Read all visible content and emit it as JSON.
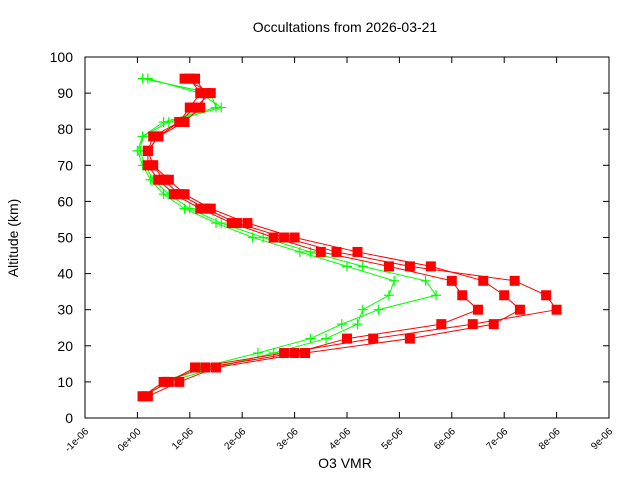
{
  "chart_data": {
    "type": "line",
    "title": "Occultations from 2026-03-21",
    "x_label": "O3 VMR",
    "y_label": "Altitude (km)",
    "xlim": [
      -1e-06,
      9e-06
    ],
    "xticks": [
      {
        "value": -1e-06,
        "label": "-1e-06"
      },
      {
        "value": 0,
        "label": "0e+00"
      },
      {
        "value": 1e-06,
        "label": "1e-06"
      },
      {
        "value": 2e-06,
        "label": "2e-06"
      },
      {
        "value": 3e-06,
        "label": "3e-06"
      },
      {
        "value": 4e-06,
        "label": "4e-06"
      },
      {
        "value": 5e-06,
        "label": "5e-06"
      },
      {
        "value": 6e-06,
        "label": "6e-06"
      },
      {
        "value": 7e-06,
        "label": "7e-06"
      },
      {
        "value": 8e-06,
        "label": "8e-06"
      },
      {
        "value": 9e-06,
        "label": "9e-06"
      }
    ],
    "ylim": [
      0,
      100
    ],
    "yticks": [
      0,
      10,
      20,
      30,
      40,
      50,
      60,
      70,
      80,
      90,
      100
    ],
    "y": [
      6,
      10,
      14,
      18,
      22,
      26,
      30,
      34,
      38,
      42,
      46,
      50,
      54,
      58,
      62,
      66,
      70,
      74,
      78,
      82,
      86,
      90,
      94
    ],
    "series": [
      {
        "color": "#00ff00",
        "marker": "plus",
        "x": [
          1e-07,
          5e-07,
          1.2e-06,
          2.3e-06,
          3.3e-06,
          3.9e-06,
          4.6e-06,
          5.7e-06,
          5.5e-06,
          4.3e-06,
          3.3e-06,
          2.4e-06,
          1.6e-06,
          1e-06,
          6e-07,
          3e-07,
          1.5e-07,
          5e-08,
          1e-07,
          5e-07,
          1.5e-06,
          1.4e-06,
          1e-07
        ]
      },
      {
        "color": "#00ff00",
        "marker": "plus",
        "x": [
          1e-07,
          6e-07,
          1.5e-06,
          2.6e-06,
          3.6e-06,
          4.2e-06,
          4.3e-06,
          4.8e-06,
          4.9e-06,
          4e-06,
          3.1e-06,
          2.2e-06,
          1.5e-06,
          9e-07,
          5e-07,
          2.5e-07,
          1e-07,
          0,
          1e-07,
          6e-07,
          1.6e-06,
          1.2e-06,
          2e-07
        ]
      },
      {
        "color": "#ff0000",
        "marker": "square",
        "x": [
          1e-07,
          6e-07,
          1.1e-06,
          2.8e-06,
          4.5e-06,
          6.4e-06,
          8e-06,
          7.8e-06,
          7.2e-06,
          5.2e-06,
          3.8e-06,
          2.8e-06,
          1.9e-06,
          1.3e-06,
          8e-07,
          5e-07,
          3e-07,
          2e-07,
          3e-07,
          8e-07,
          1e-06,
          1.2e-06,
          1e-06
        ]
      },
      {
        "color": "#ff0000",
        "marker": "square",
        "x": [
          2e-07,
          8e-07,
          1.5e-06,
          3.2e-06,
          5.2e-06,
          6.8e-06,
          7.3e-06,
          7e-06,
          6.6e-06,
          5.6e-06,
          4.2e-06,
          3e-06,
          2.1e-06,
          1.4e-06,
          9e-07,
          6e-07,
          3e-07,
          2e-07,
          4e-07,
          8e-07,
          1.1e-06,
          1.4e-06,
          9e-07
        ]
      },
      {
        "color": "#ff0000",
        "marker": "square",
        "x": [
          1e-07,
          5e-07,
          1.3e-06,
          3e-06,
          4e-06,
          5.8e-06,
          6.5e-06,
          6.2e-06,
          6e-06,
          4.8e-06,
          3.5e-06,
          2.6e-06,
          1.8e-06,
          1.2e-06,
          7e-07,
          4e-07,
          2e-07,
          2e-07,
          4e-07,
          9e-07,
          1.2e-06,
          1.3e-06,
          1.1e-06
        ]
      }
    ]
  }
}
